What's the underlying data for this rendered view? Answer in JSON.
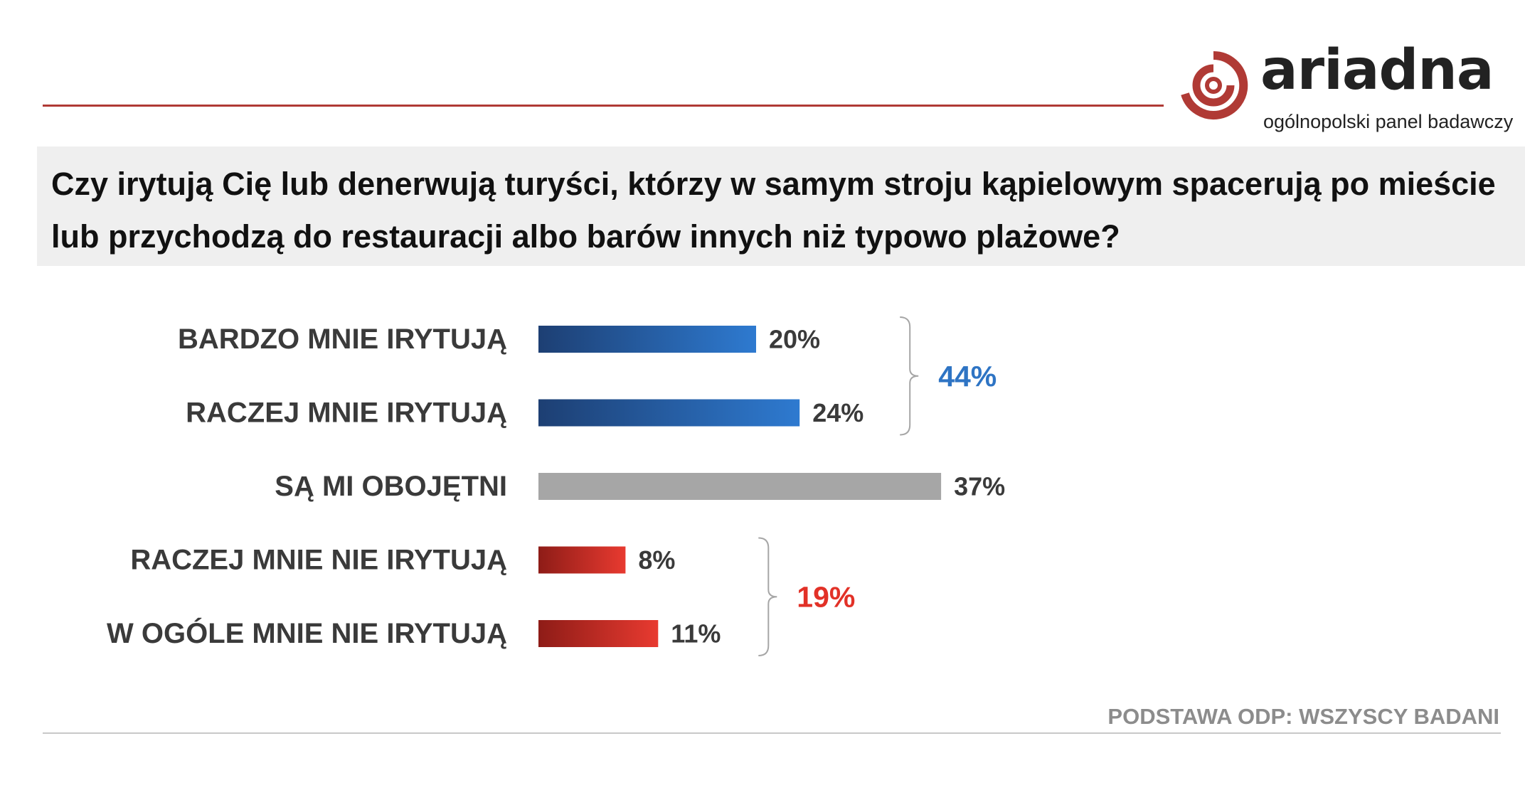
{
  "brand": {
    "name": "ariadna",
    "tagline": "ogólnopolski panel badawczy",
    "color": "#b03a35"
  },
  "question": "Czy irytują Cię lub denerwują turyści, którzy w samym stroju kąpielowym spacerują po mieście lub przychodzą do restauracji albo barów innych niż typowo plażowe?",
  "footer": {
    "base": "PODSTAWA ODP: WSZYSCY BADANI"
  },
  "chart_data": {
    "type": "bar",
    "orientation": "horizontal",
    "categories": [
      "BARDZO MNIE IRYTUJĄ",
      "RACZEJ MNIE IRYTUJĄ",
      "SĄ MI OBOJĘTNI",
      "RACZEJ MNIE NIE IRYTUJĄ",
      "W OGÓLE MNIE NIE IRYTUJĄ"
    ],
    "values": [
      20,
      24,
      37,
      8,
      11
    ],
    "value_labels": [
      "20%",
      "24%",
      "37%",
      "8%",
      "11%"
    ],
    "unit": "%",
    "bar_colors": [
      "blue",
      "blue",
      "gray",
      "red",
      "red"
    ],
    "colors": {
      "blue": [
        "#1d3f73",
        "#2e7ad0"
      ],
      "gray": [
        "#a6a6a6",
        "#a6a6a6"
      ],
      "red": [
        "#8e1c17",
        "#e83a30"
      ],
      "label": "#3a3a3a"
    },
    "groups": [
      {
        "label": "44%",
        "value": 44,
        "from": 0,
        "to": 1,
        "color": "#2e74c4"
      },
      {
        "label": "19%",
        "value": 19,
        "from": 3,
        "to": 4,
        "color": "#e23127"
      }
    ],
    "xlim": [
      0,
      100
    ],
    "grid": false,
    "legend": "none"
  }
}
